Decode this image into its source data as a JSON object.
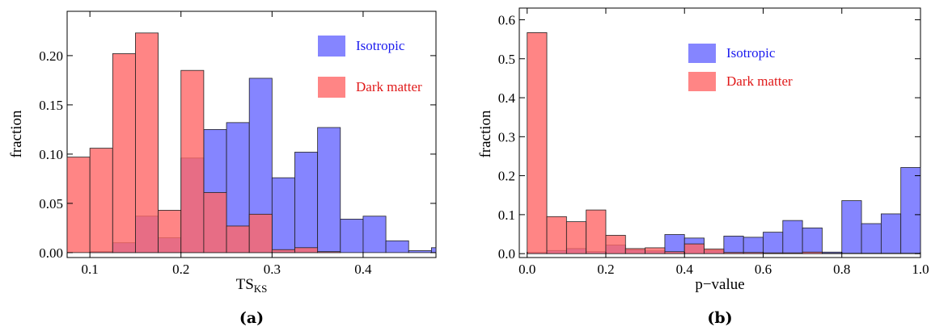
{
  "chart_data": [
    {
      "type": "bar",
      "panel_label": "(a)",
      "xlabel_main": "TS",
      "xlabel_sub": "KS",
      "ylabel": "fraction",
      "xlim": [
        0.075,
        0.48
      ],
      "ylim": [
        -0.005,
        0.245
      ],
      "bin_width": 0.025,
      "x_ticks": [
        {
          "value": 0.1,
          "label": "0.1"
        },
        {
          "value": 0.2,
          "label": "0.2"
        },
        {
          "value": 0.3,
          "label": "0.3"
        },
        {
          "value": 0.4,
          "label": "0.4"
        }
      ],
      "y_ticks": [
        {
          "value": 0.0,
          "label": "0.00"
        },
        {
          "value": 0.05,
          "label": "0.05"
        },
        {
          "value": 0.1,
          "label": "0.10"
        },
        {
          "value": 0.15,
          "label": "0.15"
        },
        {
          "value": 0.2,
          "label": "0.20"
        }
      ],
      "legend_position": "top-right",
      "series": [
        {
          "name": "Isotropic",
          "color": "#6666ff",
          "bins": [
            {
              "x0": 0.075,
              "value": 0.0
            },
            {
              "x0": 0.1,
              "value": 0.001
            },
            {
              "x0": 0.125,
              "value": 0.01
            },
            {
              "x0": 0.15,
              "value": 0.037
            },
            {
              "x0": 0.175,
              "value": 0.015
            },
            {
              "x0": 0.2,
              "value": 0.096
            },
            {
              "x0": 0.225,
              "value": 0.125
            },
            {
              "x0": 0.25,
              "value": 0.132
            },
            {
              "x0": 0.275,
              "value": 0.177
            },
            {
              "x0": 0.3,
              "value": 0.076
            },
            {
              "x0": 0.325,
              "value": 0.102
            },
            {
              "x0": 0.35,
              "value": 0.127
            },
            {
              "x0": 0.375,
              "value": 0.034
            },
            {
              "x0": 0.4,
              "value": 0.037
            },
            {
              "x0": 0.425,
              "value": 0.012
            },
            {
              "x0": 0.45,
              "value": 0.002
            },
            {
              "x0": 0.475,
              "value": 0.005
            }
          ]
        },
        {
          "name": "Dark matter",
          "color": "#ff6666",
          "bins": [
            {
              "x0": 0.075,
              "value": 0.097
            },
            {
              "x0": 0.1,
              "value": 0.106
            },
            {
              "x0": 0.125,
              "value": 0.202
            },
            {
              "x0": 0.15,
              "value": 0.223
            },
            {
              "x0": 0.175,
              "value": 0.043
            },
            {
              "x0": 0.2,
              "value": 0.185
            },
            {
              "x0": 0.225,
              "value": 0.061
            },
            {
              "x0": 0.25,
              "value": 0.027
            },
            {
              "x0": 0.275,
              "value": 0.039
            },
            {
              "x0": 0.3,
              "value": 0.003
            },
            {
              "x0": 0.325,
              "value": 0.005
            },
            {
              "x0": 0.35,
              "value": 0.001
            }
          ]
        }
      ]
    },
    {
      "type": "bar",
      "panel_label": "(b)",
      "xlabel": "p−value",
      "ylabel": "fraction",
      "xlim": [
        -0.02,
        1.0
      ],
      "ylim": [
        -0.01,
        0.63
      ],
      "bin_width": 0.05,
      "x_ticks": [
        {
          "value": 0.0,
          "label": "0.0"
        },
        {
          "value": 0.2,
          "label": "0.2"
        },
        {
          "value": 0.4,
          "label": "0.4"
        },
        {
          "value": 0.6,
          "label": "0.6"
        },
        {
          "value": 0.8,
          "label": "0.8"
        },
        {
          "value": 1.0,
          "label": "1.0"
        }
      ],
      "y_ticks": [
        {
          "value": 0.0,
          "label": "0.0"
        },
        {
          "value": 0.1,
          "label": "0.1"
        },
        {
          "value": 0.2,
          "label": "0.2"
        },
        {
          "value": 0.3,
          "label": "0.3"
        },
        {
          "value": 0.4,
          "label": "0.4"
        },
        {
          "value": 0.5,
          "label": "0.5"
        },
        {
          "value": 0.6,
          "label": "0.6"
        }
      ],
      "legend_position": "top-center",
      "series": [
        {
          "name": "Isotropic",
          "color": "#6666ff",
          "bins": [
            {
              "x0": 0.0,
              "value": 0.003
            },
            {
              "x0": 0.05,
              "value": 0.008
            },
            {
              "x0": 0.1,
              "value": 0.013
            },
            {
              "x0": 0.15,
              "value": 0.005
            },
            {
              "x0": 0.2,
              "value": 0.022
            },
            {
              "x0": 0.25,
              "value": 0.01
            },
            {
              "x0": 0.3,
              "value": 0.007
            },
            {
              "x0": 0.35,
              "value": 0.049
            },
            {
              "x0": 0.4,
              "value": 0.04
            },
            {
              "x0": 0.45,
              "value": 0.008
            },
            {
              "x0": 0.5,
              "value": 0.045
            },
            {
              "x0": 0.55,
              "value": 0.042
            },
            {
              "x0": 0.6,
              "value": 0.055
            },
            {
              "x0": 0.65,
              "value": 0.085
            },
            {
              "x0": 0.7,
              "value": 0.066
            },
            {
              "x0": 0.75,
              "value": 0.004
            },
            {
              "x0": 0.8,
              "value": 0.136
            },
            {
              "x0": 0.85,
              "value": 0.077
            },
            {
              "x0": 0.9,
              "value": 0.102
            },
            {
              "x0": 0.95,
              "value": 0.221
            }
          ]
        },
        {
          "name": "Dark matter",
          "color": "#ff6666",
          "bins": [
            {
              "x0": 0.0,
              "value": 0.567
            },
            {
              "x0": 0.05,
              "value": 0.095
            },
            {
              "x0": 0.1,
              "value": 0.082
            },
            {
              "x0": 0.15,
              "value": 0.112
            },
            {
              "x0": 0.2,
              "value": 0.047
            },
            {
              "x0": 0.25,
              "value": 0.013
            },
            {
              "x0": 0.3,
              "value": 0.015
            },
            {
              "x0": 0.35,
              "value": 0.005
            },
            {
              "x0": 0.4,
              "value": 0.025
            },
            {
              "x0": 0.45,
              "value": 0.012
            },
            {
              "x0": 0.5,
              "value": 0.003
            },
            {
              "x0": 0.55,
              "value": 0.003
            },
            {
              "x0": 0.6,
              "value": 0.002
            },
            {
              "x0": 0.65,
              "value": 0.002
            },
            {
              "x0": 0.7,
              "value": 0.004
            },
            {
              "x0": 0.75,
              "value": 0.001
            },
            {
              "x0": 0.8,
              "value": 0.001
            },
            {
              "x0": 0.85,
              "value": 0.001
            },
            {
              "x0": 0.9,
              "value": 0.001
            },
            {
              "x0": 0.95,
              "value": 0.001
            }
          ]
        }
      ]
    }
  ]
}
